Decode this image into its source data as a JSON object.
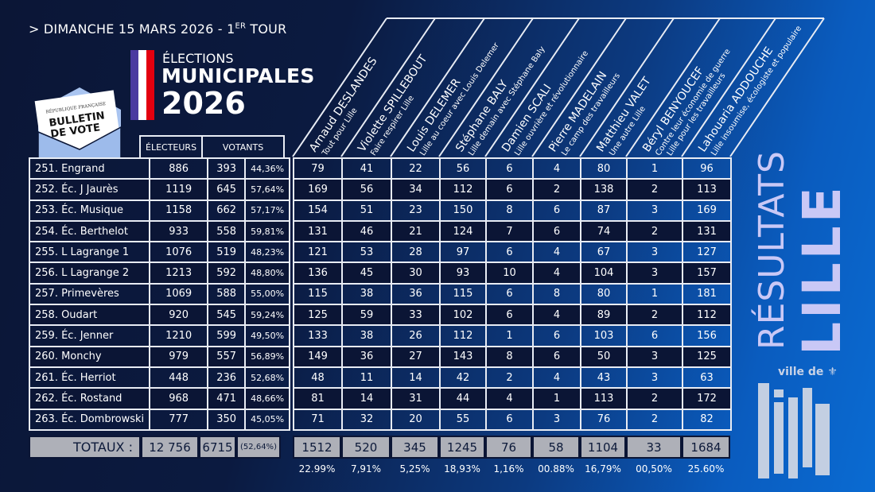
{
  "header": {
    "date": "> DIMANCHE 15 MARS 2026 - 1",
    "date_sup": "ER",
    "date_end": " TOUR",
    "title_line1": "ÉLECTIONS",
    "title_line2": "MUNICIPALES",
    "title_line3": "2026"
  },
  "ballot": {
    "top": "RÉPUBLIQUE FRANÇAISE",
    "line1": "BULLETIN",
    "line2": "DE VOTE"
  },
  "colors": {
    "flag": [
      "#4a3aa0",
      "#ffffff",
      "#e3000f"
    ],
    "accent_text": "#c9c8f6",
    "dark_row": "#0b1535",
    "totals_bg": "#aeb0b8"
  },
  "left_headers": {
    "electeurs": "ÉLECTEURS",
    "votants": "VOTANTS"
  },
  "candidates": [
    {
      "name": "Arnaud DESLANDES",
      "list": "Tout pour Lille"
    },
    {
      "name": "Violette SPILLEBOUT",
      "list": "Faire respirer Lille"
    },
    {
      "name": "Louis DELEMER",
      "list": "Lille au coeur avec Louis Delemer"
    },
    {
      "name": "Stéphane BALY",
      "list": "Lille demain avec Stéphane Baly"
    },
    {
      "name": "Damien SCALI",
      "list": "Lille ouvrière et révolutionnaire"
    },
    {
      "name": "Pierre MADELAIN",
      "list": "Le camp des travailleurs"
    },
    {
      "name": "Matthieu VALET",
      "list": "Une autre Lille"
    },
    {
      "name": "Béryl BENYOUCEF",
      "list": "Contre leur économie de guerre",
      "list2": "Lille pour les travailleurs"
    },
    {
      "name": "Lahouaria ADDOUCHE",
      "list": "Lille insoumise, écologiste et populaire"
    }
  ],
  "rows": [
    {
      "bureau": "251. Engrand",
      "electeurs": "886",
      "votants": "393",
      "pct": "44,36%",
      "votes": [
        "79",
        "41",
        "22",
        "56",
        "6",
        "4",
        "80",
        "1",
        "96"
      ]
    },
    {
      "bureau": "252. Éc. J Jaurès",
      "electeurs": "1119",
      "votants": "645",
      "pct": "57,64%",
      "votes": [
        "169",
        "56",
        "34",
        "112",
        "6",
        "2",
        "138",
        "2",
        "113"
      ]
    },
    {
      "bureau": "253. Éc. Musique",
      "electeurs": "1158",
      "votants": "662",
      "pct": "57,17%",
      "votes": [
        "154",
        "51",
        "23",
        "150",
        "8",
        "6",
        "87",
        "3",
        "169"
      ]
    },
    {
      "bureau": "254. Éc. Berthelot",
      "electeurs": "933",
      "votants": "558",
      "pct": "59,81%",
      "votes": [
        "131",
        "46",
        "21",
        "124",
        "7",
        "6",
        "74",
        "2",
        "131"
      ]
    },
    {
      "bureau": "255. L Lagrange 1",
      "electeurs": "1076",
      "votants": "519",
      "pct": "48,23%",
      "votes": [
        "121",
        "53",
        "28",
        "97",
        "6",
        "4",
        "67",
        "3",
        "127"
      ]
    },
    {
      "bureau": "256. L Lagrange 2",
      "electeurs": "1213",
      "votants": "592",
      "pct": "48,80%",
      "votes": [
        "136",
        "45",
        "30",
        "93",
        "10",
        "4",
        "104",
        "3",
        "157"
      ]
    },
    {
      "bureau": "257. Primevères",
      "electeurs": "1069",
      "votants": "588",
      "pct": "55,00%",
      "votes": [
        "115",
        "38",
        "36",
        "115",
        "6",
        "8",
        "80",
        "1",
        "181"
      ]
    },
    {
      "bureau": "258. Oudart",
      "electeurs": "920",
      "votants": "545",
      "pct": "59,24%",
      "votes": [
        "125",
        "59",
        "33",
        "102",
        "6",
        "4",
        "89",
        "2",
        "112"
      ]
    },
    {
      "bureau": "259. Éc. Jenner",
      "electeurs": "1210",
      "votants": "599",
      "pct": "49,50%",
      "votes": [
        "133",
        "38",
        "26",
        "112",
        "1",
        "6",
        "103",
        "6",
        "156"
      ]
    },
    {
      "bureau": "260. Monchy",
      "electeurs": "979",
      "votants": "557",
      "pct": "56,89%",
      "votes": [
        "149",
        "36",
        "27",
        "143",
        "8",
        "6",
        "50",
        "3",
        "125"
      ]
    },
    {
      "bureau": "261. Éc. Herriot",
      "electeurs": "448",
      "votants": "236",
      "pct": "52,68%",
      "votes": [
        "48",
        "11",
        "14",
        "42",
        "2",
        "4",
        "43",
        "3",
        "63"
      ]
    },
    {
      "bureau": "262. Éc. Rostand",
      "electeurs": "968",
      "votants": "471",
      "pct": "48,66%",
      "votes": [
        "81",
        "14",
        "31",
        "44",
        "4",
        "1",
        "113",
        "2",
        "172"
      ]
    },
    {
      "bureau": "263. Éc. Dombrowski",
      "electeurs": "777",
      "votants": "350",
      "pct": "45,05%",
      "votes": [
        "71",
        "32",
        "20",
        "55",
        "6",
        "3",
        "76",
        "2",
        "82"
      ]
    }
  ],
  "totals": {
    "label": "TOTAUX :",
    "electeurs": "12 756",
    "votants": "6715",
    "pct": "(52,64%)",
    "votes": [
      "1512",
      "520",
      "345",
      "1245",
      "76",
      "58",
      "1104",
      "33",
      "1684"
    ],
    "percents": [
      "22.99%",
      "7,91%",
      "5,25%",
      "18,93%",
      "1,16%",
      "00.88%",
      "16,79%",
      "00,50%",
      "25.60%"
    ]
  },
  "side": {
    "resultats": "RÉSULTATS",
    "city": "LILLE",
    "logo_top": "ville de",
    "logo_word": "lille"
  }
}
